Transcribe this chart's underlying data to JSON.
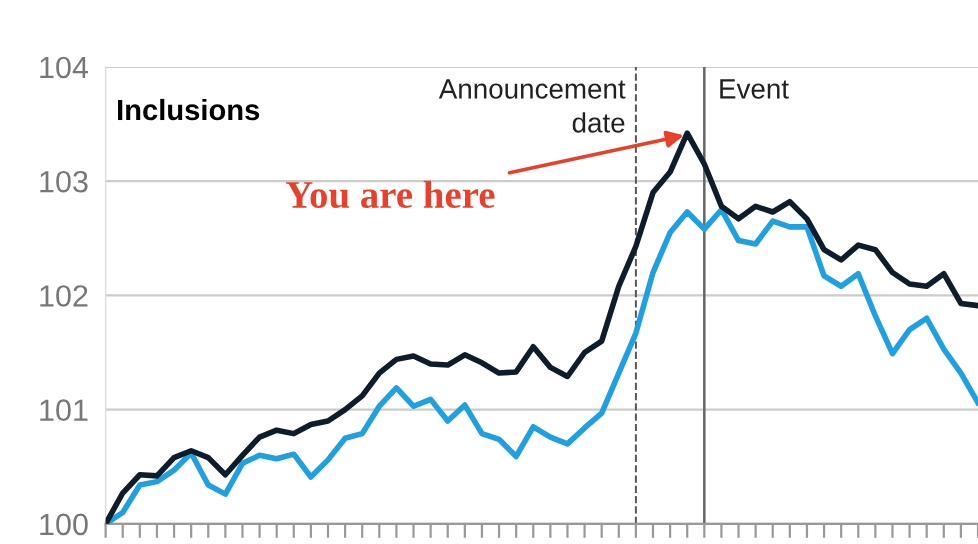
{
  "chart_data": {
    "type": "line",
    "title": "Inclusions",
    "categories": [
      null,
      null,
      null,
      null,
      null,
      null,
      null,
      null,
      null,
      null,
      null,
      null,
      null,
      null,
      null,
      null,
      null,
      null,
      null,
      null,
      null,
      null,
      null,
      null,
      null,
      null,
      null,
      null,
      null,
      null,
      null,
      null,
      null,
      null,
      null,
      null,
      null,
      null,
      null,
      null,
      null,
      null,
      null,
      null,
      null,
      null,
      null,
      null,
      null,
      null,
      null,
      null
    ],
    "series": [
      {
        "color": "#0f1c2b",
        "values": [
          100.0,
          100.27,
          100.43,
          100.42,
          100.58,
          100.64,
          100.58,
          100.43,
          100.6,
          100.76,
          100.82,
          100.79,
          100.87,
          100.9,
          101.0,
          101.12,
          101.32,
          101.44,
          101.47,
          101.4,
          101.39,
          101.48,
          101.41,
          101.32,
          101.33,
          101.55,
          101.37,
          101.29,
          101.5,
          101.6,
          102.08,
          102.43,
          102.9,
          103.08,
          103.42,
          103.15,
          102.78,
          102.67,
          102.78,
          102.73,
          102.82,
          102.67,
          102.4,
          102.31,
          102.44,
          102.4,
          102.2,
          102.1,
          102.08,
          102.19,
          101.93,
          101.91
        ]
      },
      {
        "color": "#1fa0e0",
        "values": [
          100.0,
          100.1,
          100.34,
          100.37,
          100.47,
          100.62,
          100.34,
          100.26,
          100.53,
          100.6,
          100.57,
          100.61,
          100.41,
          100.56,
          100.75,
          100.79,
          101.03,
          101.19,
          101.03,
          101.09,
          100.9,
          101.04,
          100.79,
          100.74,
          100.59,
          100.85,
          100.76,
          100.7,
          100.84,
          100.97,
          101.32,
          101.67,
          102.2,
          102.55,
          102.73,
          102.58,
          102.75,
          102.48,
          102.45,
          102.65,
          102.6,
          102.6,
          102.17,
          102.08,
          102.19,
          101.82,
          101.49,
          101.7,
          101.8,
          101.53,
          101.32,
          101.06
        ]
      }
    ],
    "ylim": [
      100,
      104
    ],
    "yticks": [
      100,
      101,
      102,
      103,
      104
    ],
    "grid": "y",
    "legend": false,
    "marker": "none",
    "line_style": "solid",
    "annotations": [
      "Announcement date",
      "Event",
      "You are here"
    ]
  }
}
